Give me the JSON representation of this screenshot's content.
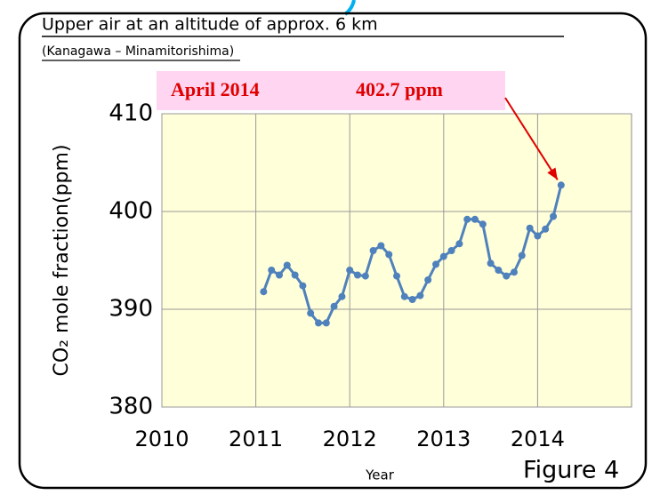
{
  "chart_data": {
    "type": "line",
    "title": "Upper air at an altitude of approx. 6 km",
    "subtitle": "(Kanagawa – Minamitorishima)",
    "annotations": [
      "April 2014",
      "402.7 ppm"
    ],
    "ylabel": "CO₂ mole fraction(ppm)",
    "xlabel": "Year",
    "figure_label": "Figure 4",
    "x": [
      2011.083,
      2011.167,
      2011.25,
      2011.333,
      2011.417,
      2011.5,
      2011.583,
      2011.667,
      2011.75,
      2011.833,
      2011.917,
      2012.0,
      2012.083,
      2012.167,
      2012.25,
      2012.333,
      2012.417,
      2012.5,
      2012.583,
      2012.667,
      2012.75,
      2012.833,
      2012.917,
      2013.0,
      2013.083,
      2013.167,
      2013.25,
      2013.333,
      2013.417,
      2013.5,
      2013.583,
      2013.667,
      2013.75,
      2013.833,
      2013.917,
      2014.0,
      2014.083,
      2014.167,
      2014.25
    ],
    "series": [
      {
        "name": "CO2",
        "color": "#4f81bd",
        "values": [
          391.8,
          394.0,
          393.5,
          394.5,
          393.5,
          392.4,
          389.6,
          388.6,
          388.6,
          390.3,
          391.3,
          394.0,
          393.5,
          393.4,
          396.0,
          396.5,
          395.6,
          393.4,
          391.3,
          391.0,
          391.4,
          393.0,
          394.6,
          395.4,
          396.0,
          396.7,
          399.2,
          399.2,
          398.7,
          394.7,
          394.0,
          393.4,
          393.8,
          395.5,
          398.3,
          397.5,
          398.2,
          399.5,
          402.7
        ]
      }
    ],
    "xlim": [
      2010,
      2015
    ],
    "xticks": [
      2010,
      2011,
      2012,
      2013,
      2014
    ],
    "ylim": [
      380,
      410
    ],
    "yticks": [
      380,
      390,
      400,
      410
    ],
    "grid": true
  }
}
